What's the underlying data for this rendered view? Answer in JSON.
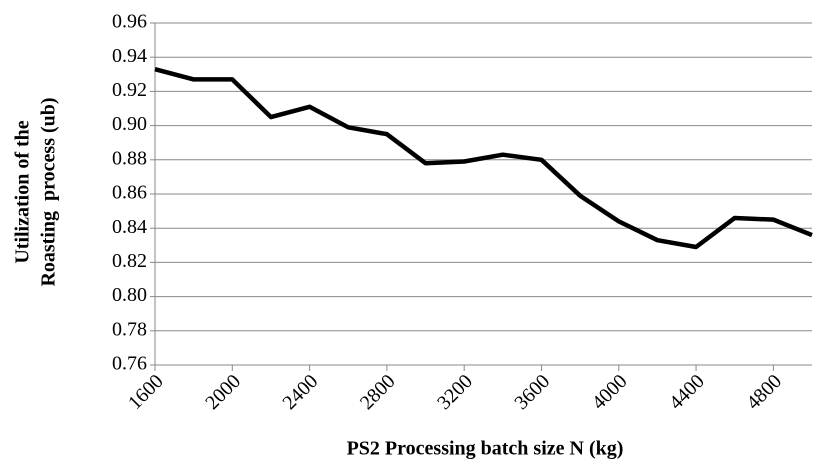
{
  "chart_data": {
    "type": "line",
    "x": [
      1600,
      1800,
      2000,
      2200,
      2400,
      2600,
      2800,
      3000,
      3200,
      3400,
      3600,
      3800,
      4000,
      4200,
      4400,
      4600,
      4800,
      5000
    ],
    "series": [
      {
        "color": "#000000",
        "values": [
          0.933,
          0.927,
          0.927,
          0.905,
          0.911,
          0.899,
          0.895,
          0.878,
          0.879,
          0.883,
          0.88,
          0.859,
          0.844,
          0.833,
          0.829,
          0.846,
          0.845,
          0.836
        ]
      }
    ],
    "xlim": [
      1600,
      5000
    ],
    "xticks": [
      1600,
      2000,
      2400,
      2800,
      3200,
      3600,
      4000,
      4400,
      4800
    ],
    "ylim": [
      0.76,
      0.96
    ],
    "yticks": [
      0.76,
      0.78,
      {
        "value": 0.8,
        "label": "0.80"
      },
      0.82,
      0.84,
      0.86,
      0.88,
      {
        "value": 0.9,
        "label": "0.90"
      },
      0.92,
      0.94,
      0.96
    ],
    "grid": true,
    "x_label": "PS2 Processing batch size N (kg)",
    "y_label": [
      "Utilization of the",
      "Roasting  process (ub)"
    ]
  }
}
